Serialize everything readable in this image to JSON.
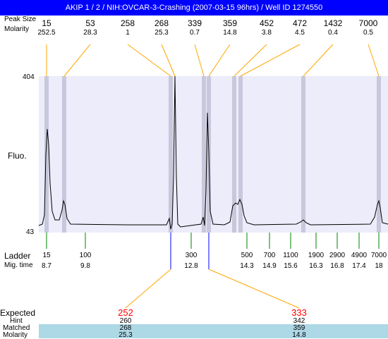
{
  "window": {
    "title": "AKIP 1 / 2 / NIH:OVCAR-3-Crashing (2007-03-15 96hrs) / Well ID 1274550"
  },
  "labels": {
    "peak_size": "Peak Size",
    "molarity": "Molarity",
    "fluo": "Fluo.",
    "ladder": "Ladder",
    "mig_time": "Mig. time",
    "expected": "Expected",
    "hint": "Hint",
    "matched": "Matched",
    "molarity_bottom": "Molarity"
  },
  "axis": {
    "y_max": "404",
    "y_min": "43"
  },
  "peaks": [
    {
      "size": "15",
      "molarity": "252.5"
    },
    {
      "size": "53",
      "molarity": "28.3"
    },
    {
      "size": "258",
      "molarity": "1"
    },
    {
      "size": "268",
      "molarity": "25.3"
    },
    {
      "size": "339",
      "molarity": "0.7"
    },
    {
      "size": "359",
      "molarity": "14.8"
    },
    {
      "size": "452",
      "molarity": "3.8"
    },
    {
      "size": "472",
      "molarity": "4.5"
    },
    {
      "size": "1432",
      "molarity": "0.4"
    },
    {
      "size": "7000",
      "molarity": "0.5"
    }
  ],
  "ladder": [
    {
      "size": "15",
      "time": "8.7"
    },
    {
      "size": "100",
      "time": "9.8"
    },
    {
      "size": "300",
      "time": "12.8"
    },
    {
      "size": "500",
      "time": "14.3"
    },
    {
      "size": "700",
      "time": "14.9"
    },
    {
      "size": "1100",
      "time": "15.6"
    },
    {
      "size": "1900",
      "time": "16.3"
    },
    {
      "size": "2900",
      "time": "16.8"
    },
    {
      "size": "4900",
      "time": "17.4"
    },
    {
      "size": "7000",
      "time": "18"
    }
  ],
  "expected": [
    {
      "value": "252",
      "hint": "260",
      "matched": "268",
      "molarity": "25.3"
    },
    {
      "value": "333",
      "hint": "342",
      "matched": "359",
      "molarity": "14.8"
    }
  ],
  "colors": {
    "title_bg": "#0000ff",
    "plot_bg": "#ececfa",
    "peak_band": "#c8c8dc",
    "connector": "#ffa500",
    "ladder_tick": "#008000",
    "expected_text": "#ff0000",
    "highlight_row": "#add8e6"
  }
}
